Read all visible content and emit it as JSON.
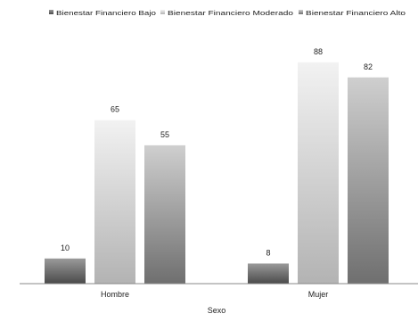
{
  "chart_data": {
    "type": "bar",
    "xlabel": "Sexo",
    "ylabel": "",
    "ylim": [
      0,
      100
    ],
    "grid": false,
    "legend_position": "top",
    "categories": [
      "Hombre",
      "Mujer"
    ],
    "series": [
      {
        "name": "Bienestar Financiero Bajo",
        "values": [
          10,
          8
        ],
        "colors": {
          "top": "#9a9a9a",
          "bottom": "#4a4a4a"
        }
      },
      {
        "name": "Bienestar Financiero Moderado",
        "values": [
          65,
          88
        ],
        "colors": {
          "top": "#f2f2f2",
          "bottom": "#b3b3b3"
        }
      },
      {
        "name": "Bienestar Financiero Alto",
        "values": [
          55,
          82
        ],
        "colors": {
          "top": "#cfcfcf",
          "bottom": "#6f6f6f"
        }
      }
    ]
  }
}
